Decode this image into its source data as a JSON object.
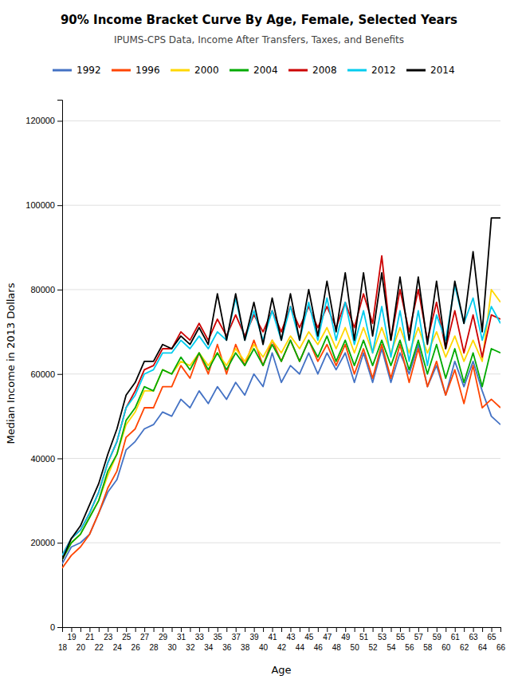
{
  "chart_data": {
    "type": "line",
    "title": "90% Income Bracket Curve By Age, Female, Selected Years",
    "subtitle": "IPUMS-CPS Data, Income After Transfers, Taxes, and Benefits",
    "x_label": "Age",
    "y_label": "Median Income in 2013 Dollars",
    "x": [
      18,
      19,
      20,
      21,
      22,
      23,
      24,
      25,
      26,
      27,
      28,
      29,
      30,
      31,
      32,
      33,
      34,
      35,
      36,
      37,
      38,
      39,
      40,
      41,
      42,
      43,
      44,
      45,
      46,
      47,
      48,
      49,
      50,
      51,
      52,
      53,
      54,
      55,
      56,
      57,
      58,
      59,
      60,
      61,
      62,
      63,
      64,
      65,
      66
    ],
    "xlim": [
      18,
      66
    ],
    "xticks": [
      18,
      19,
      20,
      21,
      22,
      23,
      24,
      25,
      26,
      27,
      28,
      29,
      30,
      31,
      32,
      33,
      34,
      35,
      36,
      37,
      38,
      39,
      40,
      41,
      42,
      43,
      44,
      45,
      46,
      47,
      48,
      49,
      50,
      51,
      52,
      53,
      54,
      55,
      56,
      57,
      58,
      59,
      60,
      61,
      62,
      63,
      64,
      65,
      66
    ],
    "ylim": [
      0,
      125000
    ],
    "yticks": [
      0,
      20000,
      40000,
      60000,
      80000,
      100000,
      120000
    ],
    "grid": true,
    "legend": "top",
    "series": [
      {
        "name": "1992",
        "color": "#4472C4",
        "values": [
          15000,
          19000,
          20000,
          22000,
          27000,
          32000,
          35000,
          42000,
          44000,
          47000,
          48000,
          51000,
          50000,
          54000,
          52000,
          56000,
          53000,
          57000,
          54000,
          58000,
          55000,
          60000,
          57000,
          65000,
          58000,
          62000,
          60000,
          65000,
          60000,
          65000,
          61000,
          65000,
          58000,
          65000,
          58000,
          66000,
          58000,
          65000,
          60000,
          67000,
          57000,
          62000,
          55000,
          63000,
          57000,
          63000,
          56000,
          50000,
          48000
        ]
      },
      {
        "name": "1996",
        "color": "#FF4500",
        "values": [
          14000,
          17000,
          19000,
          22000,
          27000,
          33000,
          37000,
          45000,
          47000,
          52000,
          52000,
          57000,
          57000,
          62000,
          59000,
          65000,
          60000,
          67000,
          60000,
          67000,
          62000,
          68000,
          62000,
          68000,
          63000,
          68000,
          63000,
          68000,
          63000,
          67000,
          62000,
          67000,
          60000,
          66000,
          59000,
          67000,
          59000,
          67000,
          58000,
          66000,
          57000,
          63000,
          55000,
          61000,
          53000,
          62000,
          52000,
          54000,
          52000
        ]
      },
      {
        "name": "2000",
        "color": "#FFD700",
        "values": [
          16000,
          20000,
          22000,
          26000,
          30000,
          36000,
          41000,
          48000,
          51000,
          56000,
          56000,
          61000,
          60000,
          63000,
          62000,
          65000,
          62000,
          65000,
          62000,
          66000,
          63000,
          67000,
          64000,
          68000,
          65000,
          69000,
          66000,
          70000,
          67000,
          71000,
          66000,
          71000,
          65000,
          71000,
          65000,
          71000,
          65000,
          71000,
          65000,
          71000,
          65000,
          70000,
          64000,
          69000,
          63000,
          68000,
          63000,
          80000,
          77000
        ]
      },
      {
        "name": "2004",
        "color": "#00AA00",
        "values": [
          16000,
          20000,
          22000,
          26000,
          30000,
          37000,
          41000,
          49000,
          52000,
          57000,
          56000,
          61000,
          60000,
          64000,
          61000,
          65000,
          61000,
          65000,
          61000,
          65000,
          62000,
          66000,
          62000,
          67000,
          63000,
          68000,
          63000,
          68000,
          64000,
          69000,
          63000,
          68000,
          62000,
          68000,
          62000,
          68000,
          62000,
          68000,
          61000,
          68000,
          60000,
          67000,
          59000,
          66000,
          58000,
          65000,
          57000,
          66000,
          65000
        ]
      },
      {
        "name": "2008",
        "color": "#CC0000",
        "values": [
          17000,
          21000,
          23000,
          27000,
          32000,
          39000,
          44000,
          52000,
          56000,
          61000,
          62000,
          66000,
          66000,
          70000,
          68000,
          72000,
          68000,
          73000,
          69000,
          74000,
          69000,
          74000,
          70000,
          75000,
          70000,
          76000,
          71000,
          76000,
          71000,
          76000,
          71000,
          77000,
          71000,
          79000,
          72000,
          88000,
          68000,
          80000,
          70000,
          80000,
          68000,
          77000,
          66000,
          75000,
          65000,
          74000,
          64000,
          74000,
          73000
        ]
      },
      {
        "name": "2012",
        "color": "#00CCEE",
        "values": [
          17000,
          21000,
          23000,
          27000,
          32000,
          39000,
          44000,
          52000,
          55000,
          60000,
          61000,
          65000,
          65000,
          68000,
          66000,
          69000,
          66000,
          70000,
          68000,
          78000,
          68000,
          75000,
          68000,
          75000,
          68000,
          76000,
          68000,
          77000,
          68000,
          78000,
          68000,
          77000,
          67000,
          75000,
          65000,
          76000,
          64000,
          75000,
          63000,
          75000,
          62000,
          74000,
          68000,
          81000,
          72000,
          78000,
          68000,
          76000,
          72000
        ]
      },
      {
        "name": "2014",
        "color": "#000000",
        "values": [
          16000,
          21000,
          24000,
          29000,
          34000,
          41000,
          47000,
          55000,
          58000,
          63000,
          63000,
          67000,
          66000,
          69000,
          67000,
          71000,
          67000,
          79000,
          68000,
          79000,
          68000,
          77000,
          67000,
          78000,
          68000,
          79000,
          68000,
          80000,
          69000,
          82000,
          70000,
          84000,
          68000,
          84000,
          69000,
          84000,
          68000,
          83000,
          68000,
          83000,
          67000,
          82000,
          66000,
          82000,
          72000,
          89000,
          70000,
          97000,
          97000
        ]
      }
    ]
  }
}
